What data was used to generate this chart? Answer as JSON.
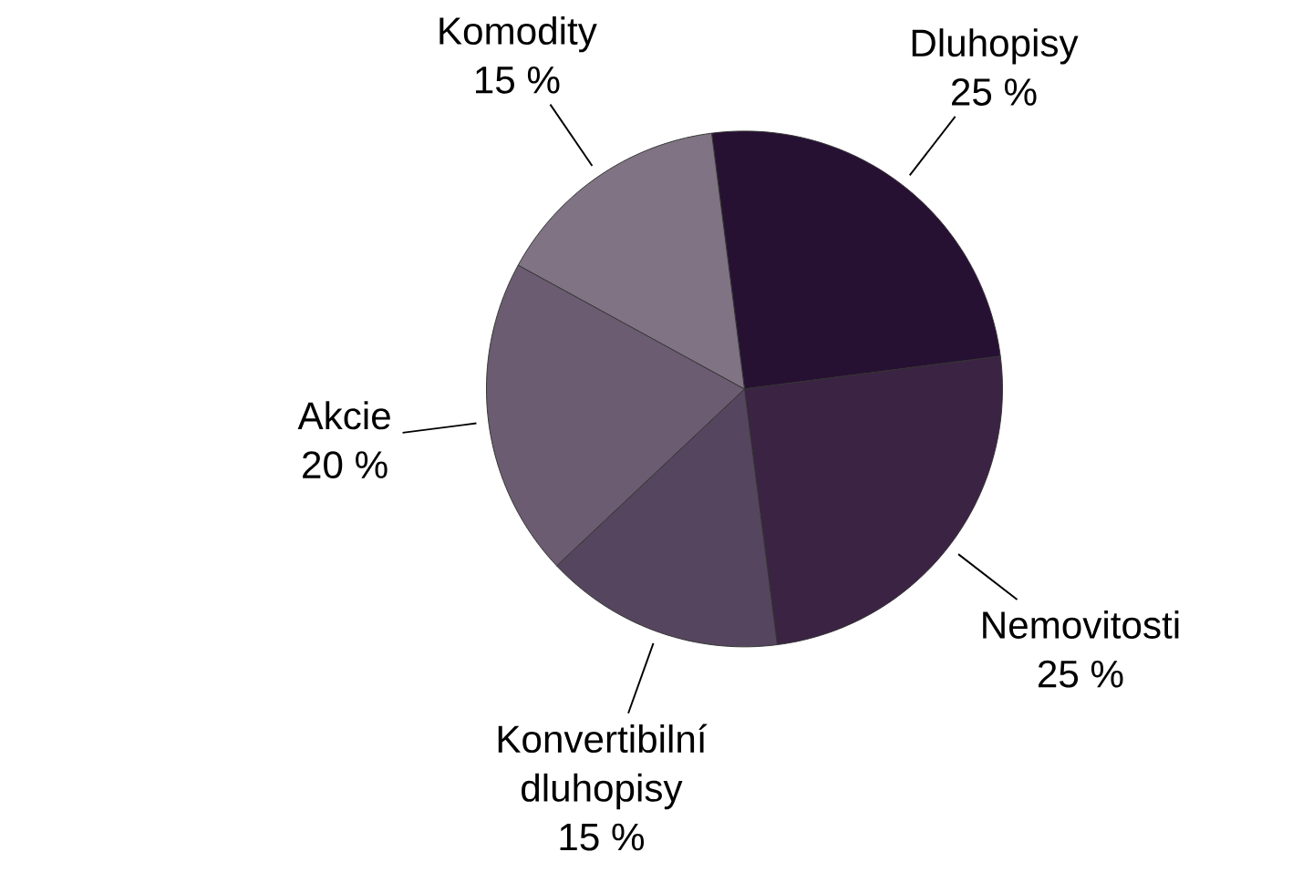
{
  "chart_data": {
    "type": "pie",
    "categories": [
      "Dluhopisy",
      "Nemovitosti",
      "Konvertibilní dluhopisy",
      "Akcie",
      "Komodity"
    ],
    "values": [
      25,
      25,
      15,
      20,
      15
    ],
    "value_labels": [
      "25 %",
      "25 %",
      "15 %",
      "20 %",
      "15 %"
    ],
    "colors": [
      "#271132",
      "#3b2343",
      "#56455e",
      "#6b5c71",
      "#807384"
    ]
  }
}
